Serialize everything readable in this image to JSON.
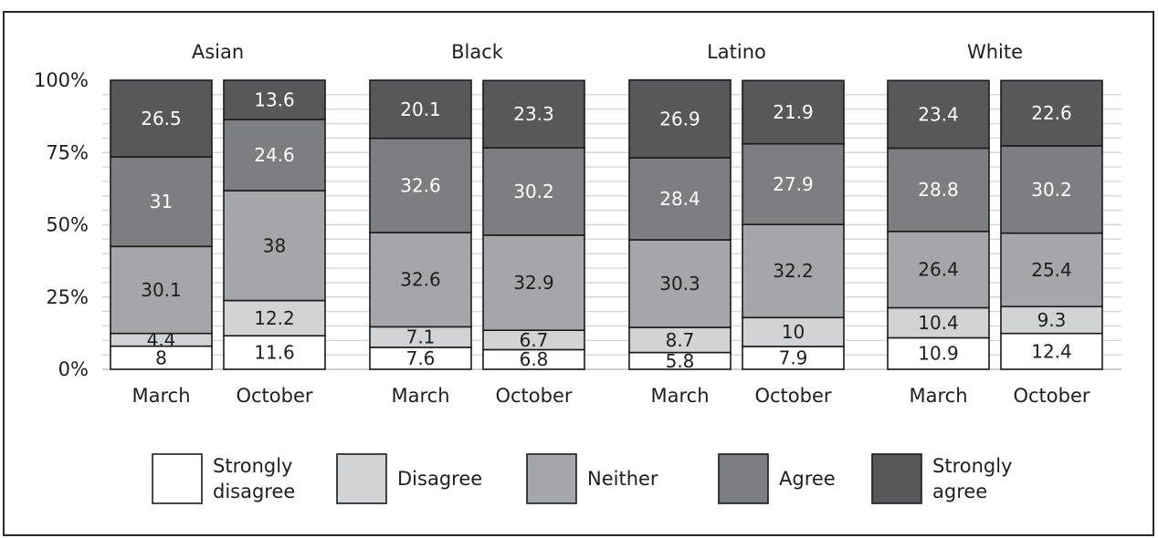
{
  "chart_data": {
    "type": "bar",
    "stacked": true,
    "grid": true,
    "legend_position": "bottom",
    "y_axis": {
      "ylim": [
        0,
        100
      ],
      "tick_labels": [
        "0%",
        "25%",
        "50%",
        "75%",
        "100%"
      ],
      "ticks": [
        0,
        25,
        50,
        75,
        100
      ]
    },
    "stack_order": [
      "Strongly disagree",
      "Disagree",
      "Neither",
      "Agree",
      "Strongly agree"
    ],
    "legend": [
      {
        "name": "Strongly disagree",
        "lines": [
          "Strongly",
          "disagree"
        ],
        "color": "#ffffff"
      },
      {
        "name": "Disagree",
        "lines": [
          "Disagree"
        ],
        "color": "#d2d3d5"
      },
      {
        "name": "Neither",
        "lines": [
          "Neither"
        ],
        "color": "#a5a6a9"
      },
      {
        "name": "Agree",
        "lines": [
          "Agree"
        ],
        "color": "#7d7e81"
      },
      {
        "name": "Strongly agree",
        "lines": [
          "Strongly",
          "agree"
        ],
        "color": "#58585a"
      }
    ],
    "groups": [
      {
        "title": "Asian",
        "bars": [
          {
            "label": "March",
            "values": [
              8,
              4.4,
              30.1,
              31,
              26.5
            ],
            "labels": [
              "8",
              "4.4",
              "30.1",
              "31",
              "26.5"
            ]
          },
          {
            "label": "October",
            "values": [
              11.6,
              12.2,
              38,
              24.6,
              13.6
            ],
            "labels": [
              "11.6",
              "12.2",
              "38",
              "24.6",
              "13.6"
            ]
          }
        ]
      },
      {
        "title": "Black",
        "bars": [
          {
            "label": "March",
            "values": [
              7.6,
              7.1,
              32.6,
              32.6,
              20.1
            ],
            "labels": [
              "7.6",
              "7.1",
              "32.6",
              "32.6",
              "20.1"
            ]
          },
          {
            "label": "October",
            "values": [
              6.8,
              6.7,
              32.9,
              30.2,
              23.3
            ],
            "labels": [
              "6.8",
              "6.7",
              "32.9",
              "30.2",
              "23.3"
            ]
          }
        ]
      },
      {
        "title": "Latino",
        "bars": [
          {
            "label": "March",
            "values": [
              5.8,
              8.7,
              30.3,
              28.4,
              26.9
            ],
            "labels": [
              "5.8",
              "8.7",
              "30.3",
              "28.4",
              "26.9"
            ]
          },
          {
            "label": "October",
            "values": [
              7.9,
              10,
              32.2,
              27.9,
              21.9
            ],
            "labels": [
              "7.9",
              "10",
              "32.2",
              "27.9",
              "21.9"
            ]
          }
        ]
      },
      {
        "title": "White",
        "bars": [
          {
            "label": "March",
            "values": [
              10.9,
              10.4,
              26.4,
              28.8,
              23.4
            ],
            "labels": [
              "10.9",
              "10.4",
              "26.4",
              "28.8",
              "23.4"
            ]
          },
          {
            "label": "October",
            "values": [
              12.4,
              9.3,
              25.4,
              30.2,
              22.6
            ],
            "labels": [
              "12.4",
              "9.3",
              "25.4",
              "30.2",
              "22.6"
            ]
          }
        ]
      }
    ]
  }
}
